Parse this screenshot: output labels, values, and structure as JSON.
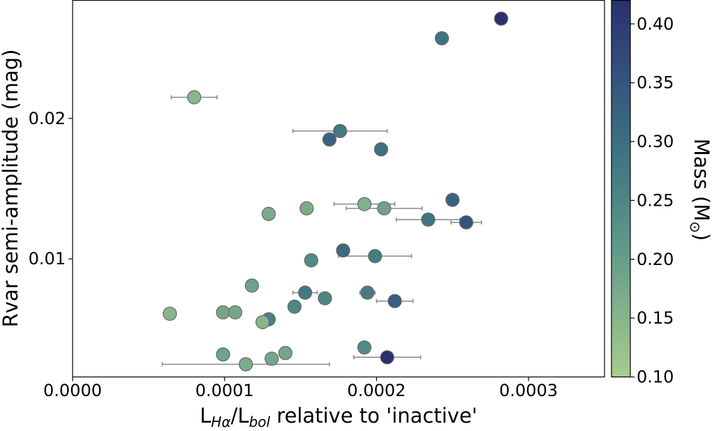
{
  "chart_data": {
    "type": "scatter",
    "xlabel_main": "L",
    "xlabel_sub1": "Hα",
    "xlabel_mid": "/L",
    "xlabel_sub2": "bol",
    "xlabel_rest": " relative to 'inactive'",
    "ylabel": "Rvar semi-amplitude (mag)",
    "colorbar_label": "Mass (M",
    "colorbar_label_sub": "⊙",
    "colorbar_label_end": ")",
    "xlim": [
      0,
      0.00035
    ],
    "ylim": [
      0.0016,
      0.0284
    ],
    "clim": [
      0.1,
      0.42
    ],
    "x_ticks": [
      {
        "value": 0,
        "label": "0.0000"
      },
      {
        "value": 0.0001,
        "label": "0.0001"
      },
      {
        "value": 0.0002,
        "label": "0.0002"
      },
      {
        "value": 0.0003,
        "label": "0.0003"
      }
    ],
    "y_ticks": [
      {
        "value": 0.01,
        "label": "0.01"
      },
      {
        "value": 0.02,
        "label": "0.02"
      }
    ],
    "c_ticks": [
      {
        "value": 0.1,
        "label": "0.10"
      },
      {
        "value": 0.15,
        "label": "0.15"
      },
      {
        "value": 0.2,
        "label": "0.20"
      },
      {
        "value": 0.25,
        "label": "0.25"
      },
      {
        "value": 0.3,
        "label": "0.30"
      },
      {
        "value": 0.35,
        "label": "0.35"
      },
      {
        "value": 0.4,
        "label": "0.40"
      }
    ],
    "colormap": [
      "#a9cc8f",
      "#86b38a",
      "#629b8a",
      "#488283",
      "#3a6880",
      "#334c7c",
      "#29316e"
    ],
    "marker_edge": "#666666",
    "errorbar_color": "#888888",
    "points": [
      {
        "x": 0.000282,
        "y": 0.0271,
        "mass": 0.42,
        "xerr": 4e-06
      },
      {
        "x": 0.000243,
        "y": 0.0257,
        "mass": 0.29
      },
      {
        "x": 8e-05,
        "y": 0.0215,
        "mass": 0.15,
        "xerr": 1.5e-05
      },
      {
        "x": 0.000176,
        "y": 0.0191,
        "mass": 0.28,
        "xerr": 3.1e-05
      },
      {
        "x": 0.000169,
        "y": 0.0185,
        "mass": 0.32
      },
      {
        "x": 0.000203,
        "y": 0.0178,
        "mass": 0.3
      },
      {
        "x": 0.00025,
        "y": 0.0142,
        "mass": 0.32
      },
      {
        "x": 0.000192,
        "y": 0.0139,
        "mass": 0.16,
        "xerr": 2e-05
      },
      {
        "x": 0.000154,
        "y": 0.0136,
        "mass": 0.17
      },
      {
        "x": 0.000205,
        "y": 0.0136,
        "mass": 0.19,
        "xerr": 2.5e-05
      },
      {
        "x": 0.000129,
        "y": 0.0132,
        "mass": 0.17,
        "xerr": 3e-06
      },
      {
        "x": 0.000234,
        "y": 0.0128,
        "mass": 0.29,
        "xerr": 2.1e-05
      },
      {
        "x": 0.000259,
        "y": 0.0126,
        "mass": 0.35,
        "xerr": 1e-05
      },
      {
        "x": 0.000178,
        "y": 0.0106,
        "mass": 0.31
      },
      {
        "x": 0.000199,
        "y": 0.0102,
        "mass": 0.27,
        "xerr": 2.4e-05
      },
      {
        "x": 0.000157,
        "y": 0.0099,
        "mass": 0.24
      },
      {
        "x": 0.000118,
        "y": 0.0081,
        "mass": 0.19
      },
      {
        "x": 0.000153,
        "y": 0.0076,
        "mass": 0.28,
        "xerr": 8e-06
      },
      {
        "x": 0.000194,
        "y": 0.0076,
        "mass": 0.27,
        "xerr": 5e-06
      },
      {
        "x": 0.000166,
        "y": 0.0072,
        "mass": 0.25
      },
      {
        "x": 0.000212,
        "y": 0.007,
        "mass": 0.33,
        "xerr": 1.2e-05
      },
      {
        "x": 0.000146,
        "y": 0.0066,
        "mass": 0.25
      },
      {
        "x": 9.9e-05,
        "y": 0.0062,
        "mass": 0.18
      },
      {
        "x": 0.000107,
        "y": 0.0062,
        "mass": 0.18
      },
      {
        "x": 6.4e-05,
        "y": 0.0061,
        "mass": 0.15
      },
      {
        "x": 0.000129,
        "y": 0.0057,
        "mass": 0.26
      },
      {
        "x": 0.000125,
        "y": 0.0055,
        "mass": 0.15
      },
      {
        "x": 0.000192,
        "y": 0.0037,
        "mass": 0.24,
        "xerr": 4e-06
      },
      {
        "x": 9.9e-05,
        "y": 0.0032,
        "mass": 0.19
      },
      {
        "x": 0.00014,
        "y": 0.0033,
        "mass": 0.18
      },
      {
        "x": 0.000131,
        "y": 0.0029,
        "mass": 0.18
      },
      {
        "x": 0.000207,
        "y": 0.003,
        "mass": 0.42,
        "xerr": 2.2e-05
      },
      {
        "x": 0.000114,
        "y": 0.0025,
        "mass": 0.17,
        "xerr": 5.5e-05
      }
    ]
  }
}
